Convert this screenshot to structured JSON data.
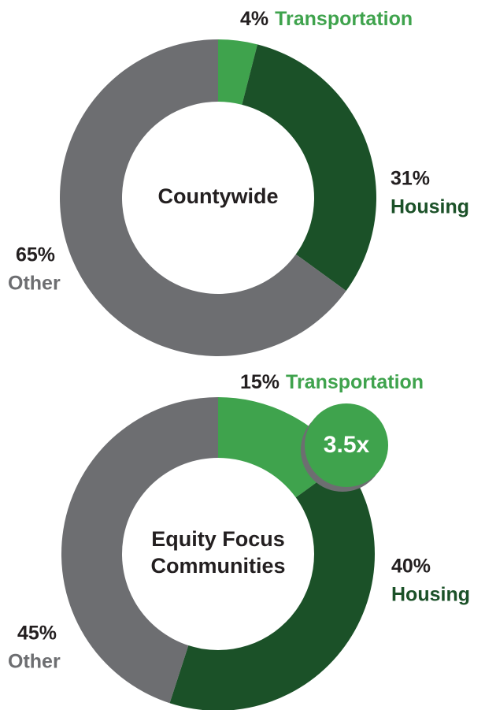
{
  "chart_data": [
    {
      "type": "pie",
      "donut": true,
      "center_label": [
        "Countywide"
      ],
      "categories": [
        "Transportation",
        "Housing",
        "Other"
      ],
      "values": [
        4,
        31,
        65
      ],
      "value_labels": [
        "4%",
        "31%",
        "65%"
      ],
      "colors": [
        "#3fa34d",
        "#1b5128",
        "#6d6e71"
      ]
    },
    {
      "type": "pie",
      "donut": true,
      "center_label": [
        "Equity Focus",
        "Communities"
      ],
      "categories": [
        "Transportation",
        "Housing",
        "Other"
      ],
      "values": [
        15,
        40,
        45
      ],
      "value_labels": [
        "15%",
        "40%",
        "45%"
      ],
      "colors": [
        "#3fa34d",
        "#1b5128",
        "#6d6e71"
      ],
      "annotation": "3.5x"
    }
  ]
}
